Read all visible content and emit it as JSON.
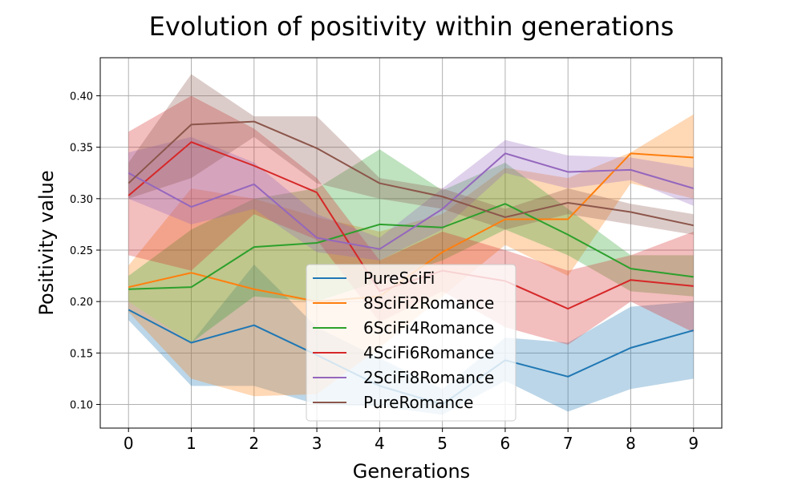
{
  "chart_data": {
    "type": "line",
    "title": "Evolution of positivity within generations",
    "xlabel": "Generations",
    "ylabel": "Positivity value",
    "x": [
      0,
      1,
      2,
      3,
      4,
      5,
      6,
      7,
      8,
      9
    ],
    "xticks": [
      "0",
      "1",
      "2",
      "3",
      "4",
      "5",
      "6",
      "7",
      "8",
      "9"
    ],
    "yticks": [
      "0.10",
      "0.15",
      "0.20",
      "0.25",
      "0.30",
      "0.35",
      "0.40"
    ],
    "ytick_values": [
      0.1,
      0.15,
      0.2,
      0.25,
      0.3,
      0.35,
      0.4
    ],
    "xlim": [
      -0.45,
      9.45
    ],
    "ylim": [
      0.077,
      0.437
    ],
    "grid": true,
    "legend_position": "center",
    "series": [
      {
        "name": "PureSciFi",
        "color": "#1f77b4",
        "values": [
          0.192,
          0.16,
          0.177,
          0.148,
          0.118,
          0.1,
          0.143,
          0.127,
          0.155,
          0.172
        ],
        "lower": [
          0.182,
          0.118,
          0.118,
          0.1,
          0.098,
          0.09,
          0.123,
          0.093,
          0.115,
          0.125
        ],
        "upper": [
          0.2,
          0.16,
          0.236,
          0.175,
          0.145,
          0.115,
          0.165,
          0.16,
          0.195,
          0.2
        ]
      },
      {
        "name": "8SciFi2Romance",
        "color": "#ff7f0e",
        "values": [
          0.214,
          0.228,
          0.212,
          0.2,
          0.205,
          0.248,
          0.28,
          0.28,
          0.344,
          0.34
        ],
        "lower": [
          0.19,
          0.125,
          0.108,
          0.11,
          0.155,
          0.205,
          0.255,
          0.225,
          0.315,
          0.3
        ],
        "upper": [
          0.235,
          0.31,
          0.3,
          0.282,
          0.268,
          0.285,
          0.33,
          0.32,
          0.345,
          0.382
        ]
      },
      {
        "name": "6SciFi4Romance",
        "color": "#2ca02c",
        "values": [
          0.212,
          0.214,
          0.253,
          0.257,
          0.275,
          0.272,
          0.295,
          0.265,
          0.232,
          0.224
        ],
        "lower": [
          0.2,
          0.16,
          0.205,
          0.2,
          0.22,
          0.24,
          0.27,
          0.245,
          0.21,
          0.205
        ],
        "upper": [
          0.225,
          0.27,
          0.3,
          0.31,
          0.348,
          0.308,
          0.335,
          0.29,
          0.245,
          0.245
        ]
      },
      {
        "name": "4SciFi6Romance",
        "color": "#d62728",
        "values": [
          0.303,
          0.355,
          0.332,
          0.306,
          0.21,
          0.23,
          0.22,
          0.193,
          0.221,
          0.215
        ],
        "lower": [
          0.245,
          0.23,
          0.285,
          0.26,
          0.18,
          0.21,
          0.175,
          0.158,
          0.2,
          0.17
        ],
        "upper": [
          0.365,
          0.4,
          0.368,
          0.32,
          0.24,
          0.268,
          0.25,
          0.23,
          0.245,
          0.268
        ]
      },
      {
        "name": "2SciFi8Romance",
        "color": "#9467bd",
        "values": [
          0.325,
          0.292,
          0.314,
          0.262,
          0.251,
          0.29,
          0.344,
          0.326,
          0.328,
          0.31
        ],
        "lower": [
          0.3,
          0.275,
          0.29,
          0.248,
          0.24,
          0.27,
          0.325,
          0.31,
          0.318,
          0.293
        ],
        "upper": [
          0.345,
          0.36,
          0.335,
          0.285,
          0.262,
          0.31,
          0.357,
          0.342,
          0.34,
          0.33
        ]
      },
      {
        "name": "PureRomance",
        "color": "#8c564b",
        "values": [
          0.315,
          0.372,
          0.375,
          0.349,
          0.315,
          0.302,
          0.282,
          0.296,
          0.287,
          0.274
        ],
        "lower": [
          0.3,
          0.32,
          0.36,
          0.315,
          0.3,
          0.29,
          0.27,
          0.285,
          0.275,
          0.265
        ],
        "upper": [
          0.335,
          0.421,
          0.38,
          0.38,
          0.32,
          0.31,
          0.29,
          0.31,
          0.295,
          0.285
        ]
      }
    ]
  }
}
